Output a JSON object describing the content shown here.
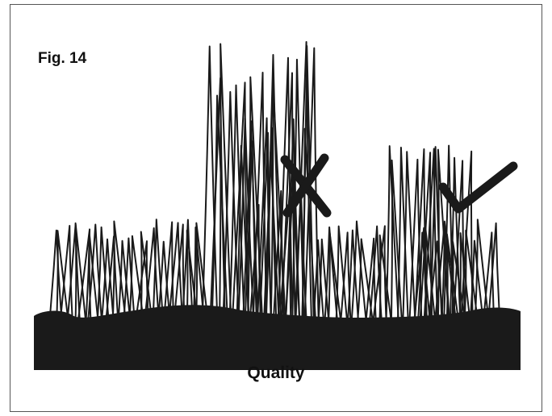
{
  "figure": {
    "label": "Fig. 14",
    "caption": "Quality"
  },
  "marks": {
    "bad_icon": "cross-icon",
    "good_icon": "check-icon"
  },
  "colors": {
    "ink": "#1a1a1a",
    "background": "#ffffff"
  }
}
